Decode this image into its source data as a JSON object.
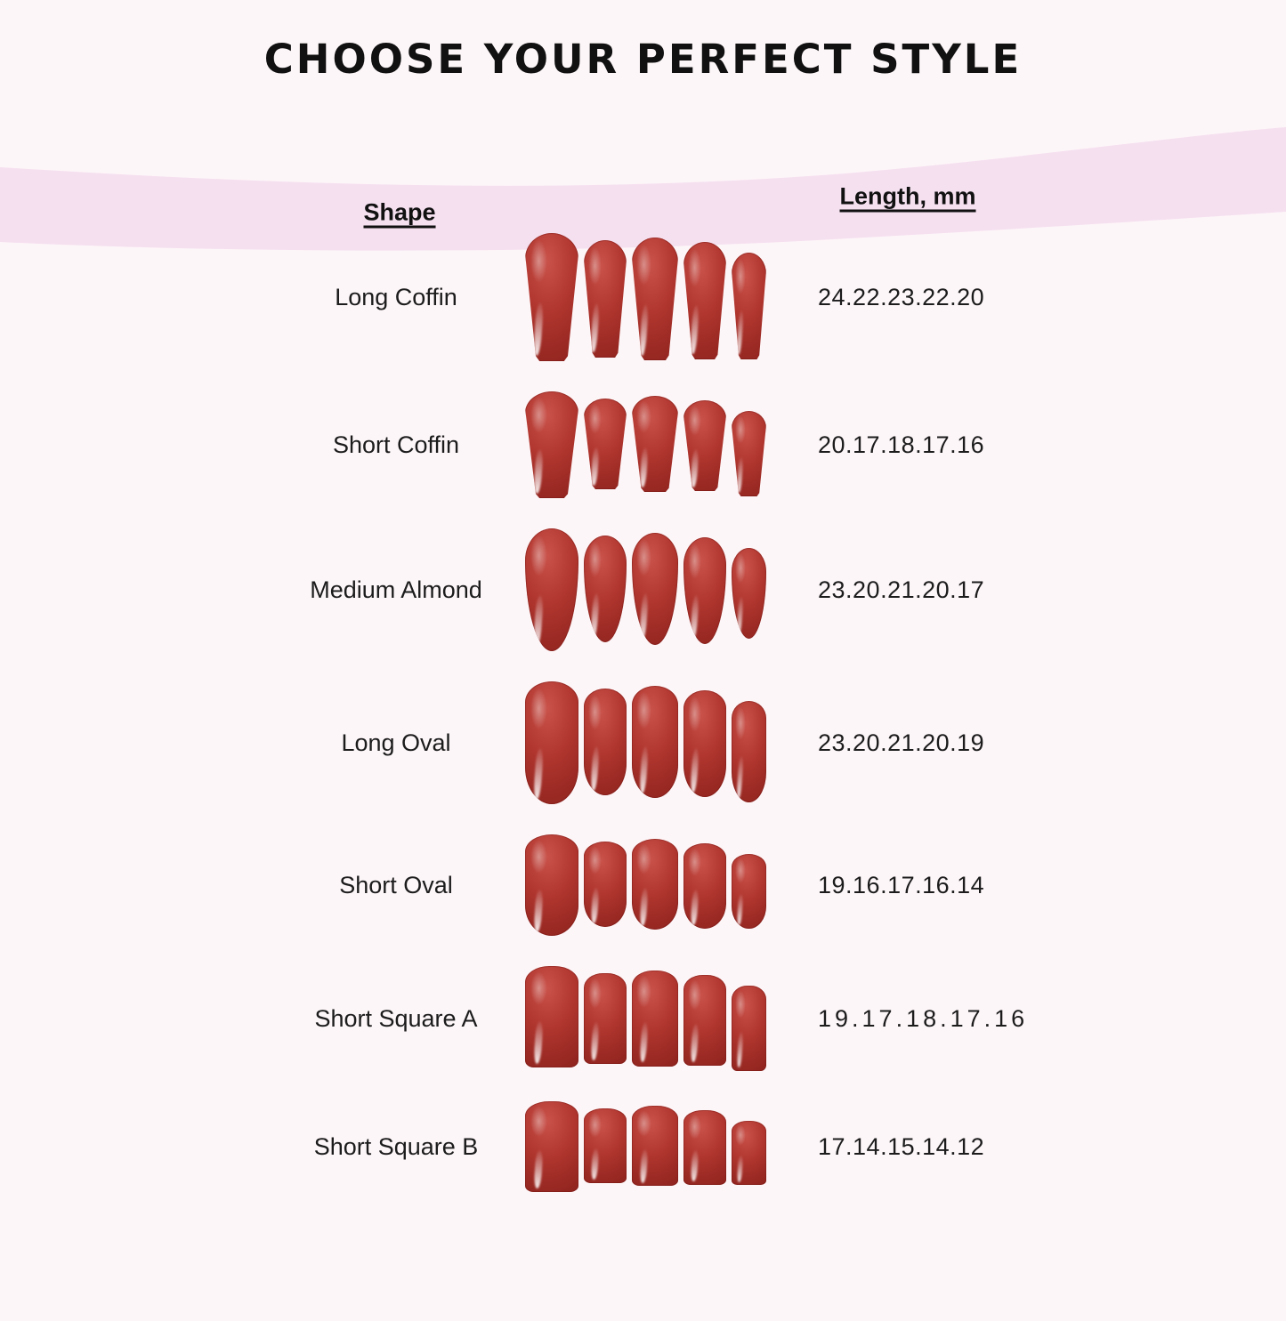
{
  "title": "CHOOSE YOUR PERFECT STYLE",
  "columns": {
    "shape": "Shape",
    "length": "Length, mm"
  },
  "colors": {
    "background": "#fdf6f8",
    "band": "#f5e0f0",
    "text": "#141414",
    "nail_base": "#b0362f",
    "nail_light": "#c9524a",
    "nail_dark": "#8a211c"
  },
  "rows": [
    {
      "shape_label": "Long Coffin",
      "lengths_mm": "24.22.23.22.20",
      "nail_shape": "coffin"
    },
    {
      "shape_label": "Short Coffin",
      "lengths_mm": "20.17.18.17.16",
      "nail_shape": "coffin"
    },
    {
      "shape_label": "Medium Almond",
      "lengths_mm": "23.20.21.20.17",
      "nail_shape": "almond"
    },
    {
      "shape_label": "Long Oval",
      "lengths_mm": "23.20.21.20.19",
      "nail_shape": "oval"
    },
    {
      "shape_label": "Short Oval",
      "lengths_mm": "19.16.17.16.14",
      "nail_shape": "oval"
    },
    {
      "shape_label": "Short Square A",
      "lengths_mm": "19.17.18.17.16",
      "nail_shape": "square"
    },
    {
      "shape_label": "Short Square B",
      "lengths_mm": "17.14.15.14.12",
      "nail_shape": "square"
    }
  ]
}
